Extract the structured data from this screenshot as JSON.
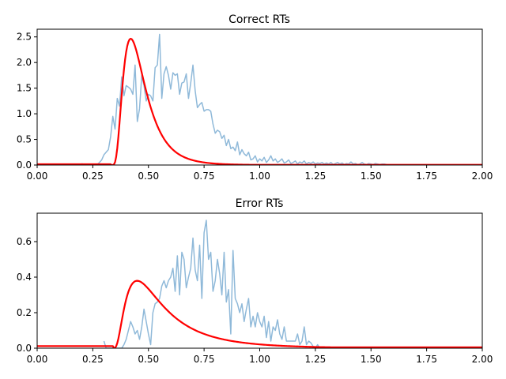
{
  "chart_data": [
    {
      "type": "line",
      "title": "Correct RTs",
      "xlabel": "",
      "ylabel": "",
      "xlim": [
        0,
        2
      ],
      "ylim": [
        0,
        2.65
      ],
      "xticks": [
        "0.00",
        "0.25",
        "0.50",
        "0.75",
        "1.00",
        "1.25",
        "1.50",
        "1.75",
        "2.00"
      ],
      "yticks": [
        "0.0",
        "0.5",
        "1.0",
        "1.5",
        "2.0",
        "2.5"
      ],
      "grid": false,
      "series": [
        {
          "style": "histogram-line",
          "color": "#8fb9d9",
          "x": [
            0.2,
            0.21,
            0.22,
            0.23,
            0.24,
            0.25,
            0.26,
            0.27,
            0.28,
            0.29,
            0.3,
            0.31,
            0.32,
            0.33,
            0.34,
            0.35,
            0.36,
            0.37,
            0.38,
            0.39,
            0.4,
            0.41,
            0.42,
            0.43,
            0.44,
            0.45,
            0.46,
            0.47,
            0.48,
            0.49,
            0.5,
            0.51,
            0.52,
            0.53,
            0.54,
            0.55,
            0.56,
            0.57,
            0.58,
            0.59,
            0.6,
            0.61,
            0.62,
            0.63,
            0.64,
            0.65,
            0.66,
            0.67,
            0.68,
            0.69,
            0.7,
            0.71,
            0.72,
            0.73,
            0.74,
            0.75,
            0.76,
            0.77,
            0.78,
            0.79,
            0.8,
            0.81,
            0.82,
            0.83,
            0.84,
            0.85,
            0.86,
            0.87,
            0.88,
            0.89,
            0.9,
            0.91,
            0.92,
            0.93,
            0.94,
            0.95,
            0.96,
            0.97,
            0.98,
            0.99,
            1.0,
            1.01,
            1.02,
            1.03,
            1.04,
            1.05,
            1.06,
            1.07,
            1.08,
            1.09,
            1.1,
            1.11,
            1.12,
            1.13,
            1.14,
            1.15,
            1.16,
            1.17,
            1.18,
            1.19,
            1.2,
            1.21,
            1.22,
            1.23,
            1.24,
            1.25,
            1.26,
            1.27,
            1.28,
            1.29,
            1.3,
            1.31,
            1.32,
            1.33,
            1.34,
            1.35,
            1.36,
            1.37,
            1.38,
            1.39,
            1.4,
            1.41,
            1.42,
            1.43,
            1.44,
            1.45,
            1.46,
            1.47,
            1.48,
            1.49,
            1.5,
            1.51,
            1.52,
            1.53,
            1.54,
            1.55,
            1.56,
            1.57
          ],
          "y": [
            0.03,
            0,
            0,
            0,
            0,
            0,
            0,
            0.01,
            0.05,
            0.1,
            0.2,
            0.25,
            0.3,
            0.55,
            0.95,
            0.7,
            1.3,
            1.15,
            1.72,
            1.35,
            1.55,
            1.52,
            1.48,
            1.38,
            1.95,
            0.85,
            1.1,
            1.75,
            1.55,
            1.25,
            1.38,
            1.35,
            1.25,
            1.9,
            1.95,
            2.55,
            1.3,
            1.78,
            1.92,
            1.75,
            1.48,
            1.8,
            1.75,
            1.78,
            1.38,
            1.6,
            1.62,
            1.78,
            1.3,
            1.6,
            1.95,
            1.45,
            1.12,
            1.18,
            1.22,
            1.05,
            1.08,
            1.08,
            1.05,
            0.8,
            0.62,
            0.68,
            0.65,
            0.52,
            0.58,
            0.38,
            0.5,
            0.32,
            0.35,
            0.28,
            0.45,
            0.2,
            0.3,
            0.22,
            0.18,
            0.25,
            0.1,
            0.12,
            0.18,
            0.06,
            0.12,
            0.08,
            0.15,
            0.05,
            0.1,
            0.18,
            0.08,
            0.12,
            0.05,
            0.08,
            0.12,
            0.04,
            0.06,
            0.1,
            0.03,
            0.05,
            0.08,
            0.02,
            0.06,
            0.04,
            0.08,
            0.02,
            0.05,
            0.03,
            0.06,
            0.02,
            0.04,
            0.03,
            0.05,
            0.02,
            0.04,
            0.02,
            0.05,
            0.01,
            0.03,
            0.05,
            0.02,
            0.04,
            0.01,
            0.03,
            0.02,
            0.06,
            0.02,
            0.03,
            0.01,
            0.02,
            0.05,
            0.02,
            0.01,
            0.03,
            0.02,
            0.01,
            0.03,
            0.02,
            0.01,
            0.02,
            0.02,
            0.01
          ]
        },
        {
          "style": "theory-curve",
          "color": "#ff0000",
          "t0": 0.33,
          "scale": 2.465,
          "mu": -2.1,
          "sigma": 0.55,
          "pre_offset": 0.015
        }
      ]
    },
    {
      "type": "line",
      "title": "Error RTs",
      "xlabel": "",
      "ylabel": "",
      "xlim": [
        0,
        2
      ],
      "ylim": [
        0,
        0.76
      ],
      "xticks": [
        "0.00",
        "0.25",
        "0.50",
        "0.75",
        "1.00",
        "1.25",
        "1.50",
        "1.75",
        "2.00"
      ],
      "yticks": [
        "0.0",
        "0.2",
        "0.4",
        "0.6"
      ],
      "grid": false,
      "series": [
        {
          "style": "histogram-line",
          "color": "#8fb9d9",
          "x": [
            0.3,
            0.31,
            0.32,
            0.33,
            0.34,
            0.35,
            0.36,
            0.37,
            0.38,
            0.39,
            0.4,
            0.41,
            0.42,
            0.43,
            0.44,
            0.45,
            0.46,
            0.47,
            0.48,
            0.49,
            0.5,
            0.51,
            0.52,
            0.53,
            0.54,
            0.55,
            0.56,
            0.57,
            0.58,
            0.59,
            0.6,
            0.61,
            0.62,
            0.63,
            0.64,
            0.65,
            0.66,
            0.67,
            0.68,
            0.69,
            0.7,
            0.71,
            0.72,
            0.73,
            0.74,
            0.75,
            0.76,
            0.77,
            0.78,
            0.79,
            0.8,
            0.81,
            0.82,
            0.83,
            0.84,
            0.85,
            0.86,
            0.87,
            0.88,
            0.89,
            0.9,
            0.91,
            0.92,
            0.93,
            0.94,
            0.95,
            0.96,
            0.97,
            0.98,
            0.99,
            1.0,
            1.01,
            1.02,
            1.03,
            1.04,
            1.05,
            1.06,
            1.07,
            1.08,
            1.09,
            1.1,
            1.11,
            1.12,
            1.13,
            1.14,
            1.15,
            1.16,
            1.17,
            1.18,
            1.19,
            1.2,
            1.21,
            1.22,
            1.23,
            1.24,
            1.25,
            1.26,
            1.27
          ],
          "y": [
            0.04,
            0,
            0,
            0,
            0,
            0,
            0,
            0,
            0,
            0.02,
            0.05,
            0.1,
            0.15,
            0.12,
            0.08,
            0.1,
            0.05,
            0.12,
            0.22,
            0.15,
            0.08,
            0.02,
            0.2,
            0.25,
            0.26,
            0.28,
            0.35,
            0.38,
            0.34,
            0.38,
            0.4,
            0.45,
            0.32,
            0.52,
            0.3,
            0.54,
            0.5,
            0.34,
            0.4,
            0.45,
            0.62,
            0.44,
            0.38,
            0.58,
            0.28,
            0.65,
            0.72,
            0.5,
            0.54,
            0.32,
            0.38,
            0.5,
            0.42,
            0.3,
            0.54,
            0.26,
            0.33,
            0.08,
            0.55,
            0.28,
            0.25,
            0.2,
            0.25,
            0.15,
            0.22,
            0.28,
            0.12,
            0.18,
            0.12,
            0.2,
            0.15,
            0.12,
            0.18,
            0.06,
            0.15,
            0.04,
            0.12,
            0.1,
            0.16,
            0.08,
            0.05,
            0.12,
            0.04,
            0.04,
            0.04,
            0.04,
            0.04,
            0.08,
            0.02,
            0.04,
            0.12,
            0.02,
            0.04,
            0.03,
            0.01,
            0,
            0.02,
            0
          ]
        },
        {
          "style": "theory-curve",
          "color": "#ff0000",
          "t0": 0.34,
          "scale": 0.3795,
          "mu": -1.65,
          "sigma": 0.75,
          "pre_offset": 0.012
        }
      ]
    }
  ]
}
